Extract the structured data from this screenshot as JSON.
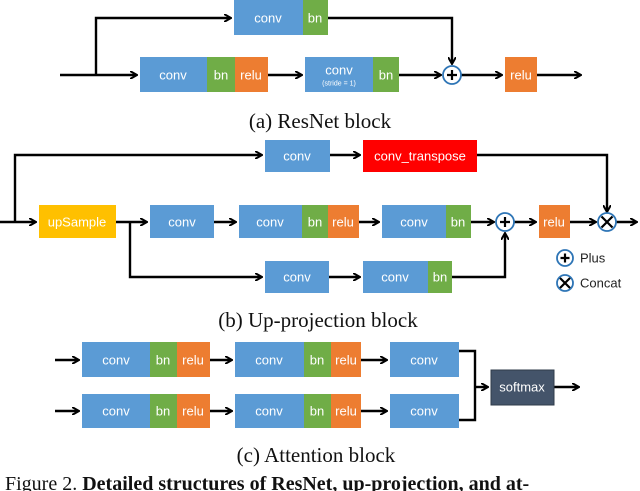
{
  "colors": {
    "conv": "#5b9bd5",
    "bn": "#70ad47",
    "relu": "#ed7d31",
    "upsample": "#ffc000",
    "conv_transpose": "#ff0000",
    "softmax": "#44546a",
    "circle": "#2e75b6"
  },
  "labels": {
    "conv": "conv",
    "bn": "bn",
    "relu": "relu",
    "stride": "(stride = 1)",
    "upSample": "upSample",
    "conv_transpose": "conv_transpose",
    "softmax": "softmax"
  },
  "legend": {
    "plus": "Plus",
    "concat": "Concat"
  },
  "captions": {
    "a": "(a) ResNet block",
    "b": "(b) Up-projection block",
    "c": "(c) Attention block"
  },
  "figure_caption": {
    "prefix": "Figure 2. ",
    "bold": "Detailed structures of ResNet, up-projection, and at-"
  }
}
